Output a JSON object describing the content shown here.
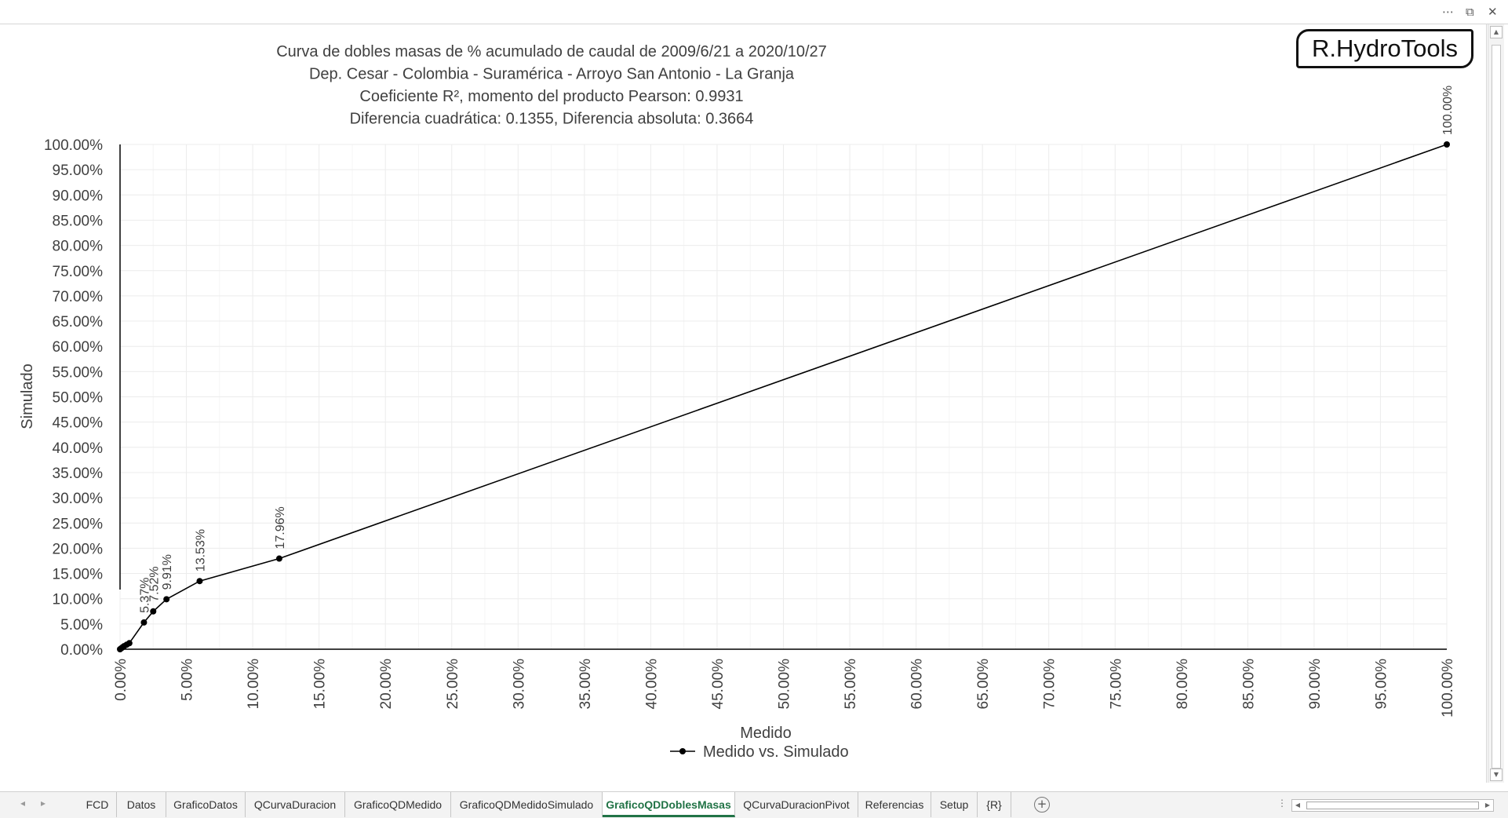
{
  "window": {
    "more_icon": "⋯",
    "restore_icon": "⧉",
    "close_icon": "✕"
  },
  "logo": {
    "text": "R.HydroTools"
  },
  "chart_data": {
    "type": "scatter",
    "lines_between_points": true,
    "title": [
      "Curva de dobles masas de % acumulado de caudal de 2009/6/21 a 2020/10/27",
      "Dep. Cesar - Colombia - Suramérica - Arroyo San Antonio - La Granja",
      "Coeficiente R², momento del producto Pearson: 0.9931",
      "Diferencia cuadrática: 0.1355, Diferencia absoluta: 0.3664"
    ],
    "xlabel": "Medido",
    "ylabel": "Simulado",
    "xlim": [
      0,
      100
    ],
    "ylim": [
      0,
      100
    ],
    "x_ticks": [
      "0.00%",
      "5.00%",
      "10.00%",
      "15.00%",
      "20.00%",
      "25.00%",
      "30.00%",
      "35.00%",
      "40.00%",
      "45.00%",
      "50.00%",
      "55.00%",
      "60.00%",
      "65.00%",
      "70.00%",
      "75.00%",
      "80.00%",
      "85.00%",
      "90.00%",
      "95.00%",
      "100.00%"
    ],
    "y_ticks": [
      "0.00%",
      "5.00%",
      "10.00%",
      "15.00%",
      "20.00%",
      "25.00%",
      "30.00%",
      "35.00%",
      "40.00%",
      "45.00%",
      "50.00%",
      "55.00%",
      "60.00%",
      "65.00%",
      "70.00%",
      "75.00%",
      "80.00%",
      "85.00%",
      "90.00%",
      "95.00%",
      "100.00%"
    ],
    "grid": true,
    "legend": {
      "position": "bottom",
      "entries": [
        "Medido vs. Simulado"
      ]
    },
    "series": [
      {
        "name": "Medido vs. Simulado",
        "color": "#000000",
        "points": [
          {
            "x": 0.0,
            "y": 0.0
          },
          {
            "x": 0.1,
            "y": 0.2
          },
          {
            "x": 0.2,
            "y": 0.4
          },
          {
            "x": 0.3,
            "y": 0.6
          },
          {
            "x": 0.5,
            "y": 0.9
          },
          {
            "x": 0.7,
            "y": 1.2
          },
          {
            "x": 1.8,
            "y": 5.3,
            "label": "5.37%"
          },
          {
            "x": 2.5,
            "y": 7.5,
            "label": "7.52%"
          },
          {
            "x": 3.5,
            "y": 9.9,
            "label": "9.91%"
          },
          {
            "x": 6.0,
            "y": 13.5,
            "label": "13.53%"
          },
          {
            "x": 12.0,
            "y": 17.96,
            "label": "17.96%"
          },
          {
            "x": 100.0,
            "y": 100.0,
            "label": "100.00%"
          }
        ]
      }
    ]
  },
  "tabs": {
    "nav_prev": "◂",
    "nav_next": "▸",
    "items": [
      {
        "label": "FCD"
      },
      {
        "label": "Datos"
      },
      {
        "label": "GraficoDatos"
      },
      {
        "label": "QCurvaDuracion"
      },
      {
        "label": "GraficoQDMedido"
      },
      {
        "label": "GraficoQDMedidoSimulado"
      },
      {
        "label": "GraficoQDDoblesMasas",
        "active": true
      },
      {
        "label": "QCurvaDuracionPivot"
      },
      {
        "label": "Referencias"
      },
      {
        "label": "Setup"
      },
      {
        "label": "{R}"
      }
    ],
    "add_icon": "+",
    "options_icon": "⋮"
  }
}
